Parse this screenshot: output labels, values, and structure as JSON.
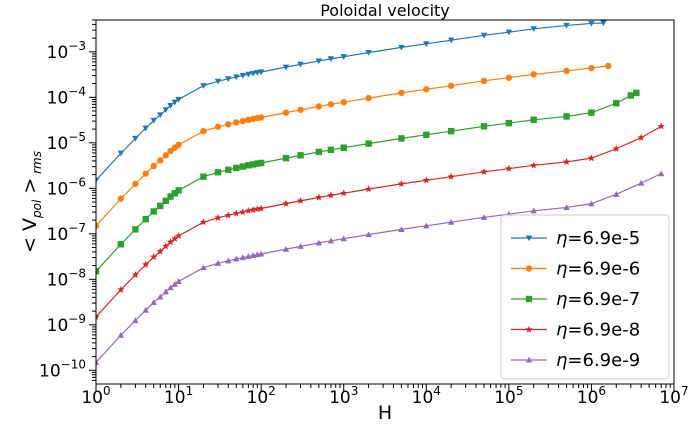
{
  "chart_data": {
    "type": "line",
    "title": "Poloidal velocity",
    "xlabel": "H",
    "ylabel": "< V_pol >_rms",
    "ylabel_main": "< V",
    "ylabel_sub1": "pol",
    "ylabel_mid": " >",
    "ylabel_sub2": " rms",
    "x_scale": "log",
    "y_scale": "log",
    "xlim": [
      1,
      10000000
    ],
    "ylim": [
      5e-11,
      0.005
    ],
    "x_ticks": [
      {
        "base": "10",
        "exp": "0",
        "value": 1
      },
      {
        "base": "10",
        "exp": "1",
        "value": 10
      },
      {
        "base": "10",
        "exp": "2",
        "value": 100
      },
      {
        "base": "10",
        "exp": "3",
        "value": 1000
      },
      {
        "base": "10",
        "exp": "4",
        "value": 10000
      },
      {
        "base": "10",
        "exp": "5",
        "value": 100000
      },
      {
        "base": "10",
        "exp": "6",
        "value": 1000000
      },
      {
        "base": "10",
        "exp": "7",
        "value": 10000000
      }
    ],
    "y_ticks": [
      {
        "base": "10",
        "exp": "−10",
        "value": 1e-10
      },
      {
        "base": "10",
        "exp": "−9",
        "value": 1e-09
      },
      {
        "base": "10",
        "exp": "−8",
        "value": 1e-08
      },
      {
        "base": "10",
        "exp": "−7",
        "value": 1e-07
      },
      {
        "base": "10",
        "exp": "−6",
        "value": 1e-06
      },
      {
        "base": "10",
        "exp": "−5",
        "value": 1e-05
      },
      {
        "base": "10",
        "exp": "−4",
        "value": 0.0001
      },
      {
        "base": "10",
        "exp": "−3",
        "value": 0.001
      }
    ],
    "legend": {
      "placement": "lower-right"
    },
    "series": [
      {
        "name": "η=6.9e-5",
        "symbol": "η",
        "value_text": "=6.9e-5",
        "color": "#1f77b4",
        "marker": "triangle-down",
        "x": [
          1,
          2,
          3,
          4,
          5,
          6,
          7,
          8,
          9,
          10,
          20,
          30,
          40,
          50,
          60,
          70,
          80,
          90,
          100,
          200,
          300,
          500,
          700,
          1000,
          2000,
          5000,
          10000,
          20000,
          50000,
          100000,
          200000,
          500000,
          1000000,
          1400000
        ],
        "y": [
          1.5e-06,
          5.9e-06,
          1.25e-05,
          2.1e-05,
          3.1e-05,
          4.1e-05,
          5.3e-05,
          6.6e-05,
          7.8e-05,
          9e-05,
          0.00018,
          0.000225,
          0.000255,
          0.00028,
          0.0003,
          0.00032,
          0.000335,
          0.00035,
          0.00036,
          0.00046,
          0.00053,
          0.00063,
          0.0007,
          0.00078,
          0.00096,
          0.00125,
          0.0015,
          0.0018,
          0.0023,
          0.0027,
          0.0032,
          0.0038,
          0.0042,
          0.0043
        ]
      },
      {
        "name": "η=6.9e-6",
        "symbol": "η",
        "value_text": "=6.9e-6",
        "color": "#ff7f0e",
        "marker": "circle",
        "x": [
          1,
          2,
          3,
          4,
          5,
          6,
          7,
          8,
          9,
          10,
          20,
          30,
          40,
          50,
          60,
          70,
          80,
          90,
          100,
          200,
          300,
          500,
          700,
          1000,
          2000,
          5000,
          10000,
          20000,
          50000,
          100000,
          200000,
          500000,
          1000000,
          1600000
        ],
        "y": [
          1.5e-07,
          5.9e-07,
          1.25e-06,
          2.1e-06,
          3.1e-06,
          4.1e-06,
          5.3e-06,
          6.6e-06,
          7.8e-06,
          9e-06,
          1.8e-05,
          2.25e-05,
          2.55e-05,
          2.8e-05,
          3e-05,
          3.2e-05,
          3.35e-05,
          3.5e-05,
          3.6e-05,
          4.6e-05,
          5.3e-05,
          6.3e-05,
          7e-05,
          7.8e-05,
          9.6e-05,
          0.000125,
          0.00015,
          0.00018,
          0.00023,
          0.00027,
          0.00032,
          0.00038,
          0.00044,
          0.00049
        ]
      },
      {
        "name": "η=6.9e-7",
        "symbol": "η",
        "value_text": "=6.9e-7",
        "color": "#2ca02c",
        "marker": "square",
        "x": [
          1,
          2,
          3,
          4,
          5,
          6,
          7,
          8,
          9,
          10,
          20,
          30,
          40,
          50,
          60,
          70,
          80,
          90,
          100,
          200,
          300,
          500,
          700,
          1000,
          2000,
          5000,
          10000,
          20000,
          50000,
          100000,
          200000,
          500000,
          1000000,
          2000000,
          3000000,
          3500000
        ],
        "y": [
          1.5e-08,
          5.9e-08,
          1.25e-07,
          2.1e-07,
          3.1e-07,
          4.1e-07,
          5.3e-07,
          6.6e-07,
          7.8e-07,
          9e-07,
          1.8e-06,
          2.25e-06,
          2.55e-06,
          2.8e-06,
          3e-06,
          3.2e-06,
          3.35e-06,
          3.5e-06,
          3.6e-06,
          4.6e-06,
          5.3e-06,
          6.3e-06,
          7e-06,
          7.8e-06,
          9.6e-06,
          1.25e-05,
          1.5e-05,
          1.8e-05,
          2.3e-05,
          2.7e-05,
          3.2e-05,
          3.8e-05,
          4.6e-05,
          7.4e-05,
          0.00011,
          0.000125
        ]
      },
      {
        "name": "η=6.9e-8",
        "symbol": "η",
        "value_text": "=6.9e-8",
        "color": "#d62728",
        "marker": "star",
        "x": [
          1,
          2,
          3,
          4,
          5,
          6,
          7,
          8,
          9,
          10,
          20,
          30,
          40,
          50,
          60,
          70,
          80,
          90,
          100,
          200,
          300,
          500,
          700,
          1000,
          2000,
          5000,
          10000,
          20000,
          50000,
          100000,
          200000,
          500000,
          1000000,
          2000000,
          4000000,
          7000000
        ],
        "y": [
          1.5e-09,
          5.9e-09,
          1.25e-08,
          2.1e-08,
          3.1e-08,
          4.1e-08,
          5.3e-08,
          6.6e-08,
          7.8e-08,
          9e-08,
          1.8e-07,
          2.25e-07,
          2.55e-07,
          2.8e-07,
          3e-07,
          3.2e-07,
          3.35e-07,
          3.5e-07,
          3.6e-07,
          4.6e-07,
          5.3e-07,
          6.3e-07,
          7e-07,
          7.8e-07,
          9.6e-07,
          1.25e-06,
          1.5e-06,
          1.8e-06,
          2.3e-06,
          2.7e-06,
          3.2e-06,
          3.8e-06,
          4.6e-06,
          7.4e-06,
          1.3e-05,
          2.3e-05
        ]
      },
      {
        "name": "η=6.9e-9",
        "symbol": "η",
        "value_text": "=6.9e-9",
        "color": "#9467bd",
        "marker": "triangle-up",
        "x": [
          1,
          2,
          3,
          4,
          5,
          6,
          7,
          8,
          9,
          10,
          20,
          30,
          40,
          50,
          60,
          70,
          80,
          90,
          100,
          200,
          300,
          500,
          700,
          1000,
          2000,
          5000,
          10000,
          20000,
          50000,
          100000,
          200000,
          500000,
          1000000,
          2000000,
          4000000,
          7000000
        ],
        "y": [
          1.5e-10,
          5.9e-10,
          1.25e-09,
          2.1e-09,
          3.1e-09,
          4.1e-09,
          5.3e-09,
          6.6e-09,
          7.8e-09,
          9e-09,
          1.8e-08,
          2.25e-08,
          2.55e-08,
          2.8e-08,
          3e-08,
          3.2e-08,
          3.35e-08,
          3.5e-08,
          3.6e-08,
          4.6e-08,
          5.3e-08,
          6.3e-08,
          7e-08,
          7.8e-08,
          9.6e-08,
          1.25e-07,
          1.5e-07,
          1.8e-07,
          2.3e-07,
          2.7e-07,
          3.2e-07,
          3.8e-07,
          4.6e-07,
          7.4e-07,
          1.3e-06,
          2.1e-06
        ]
      }
    ]
  }
}
